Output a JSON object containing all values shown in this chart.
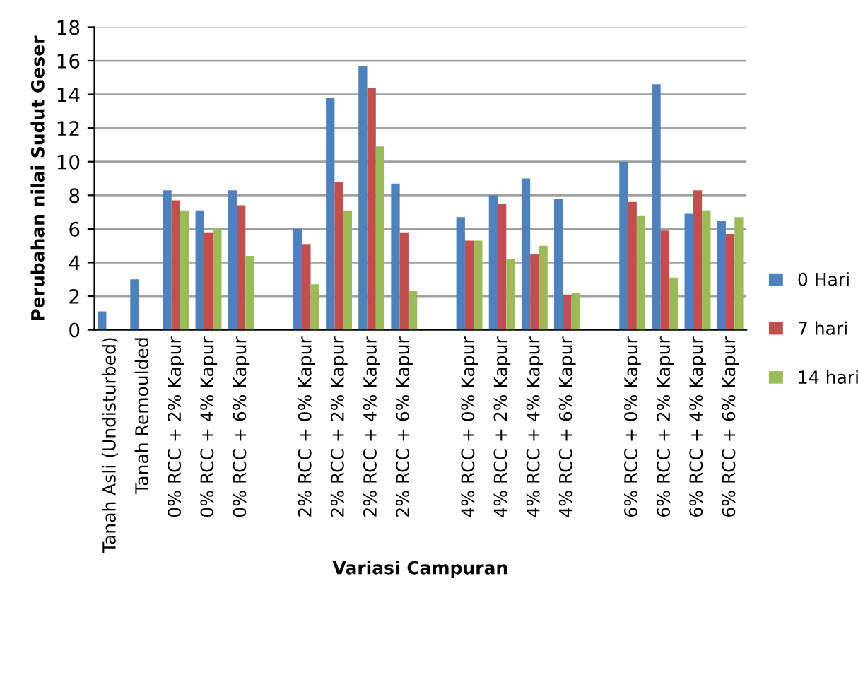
{
  "chart_data": {
    "type": "bar",
    "xlabel": "Variasi Campuran",
    "ylabel": "Perubahan nilai Sudut Geser",
    "categories": [
      "Tanah Asli (Undisturbed)",
      "Tanah Remoulded",
      "0% RCC + 2% Kapur",
      "0% RCC + 4% Kapur",
      "0% RCC + 6% Kapur",
      null,
      "2% RCC + 0% Kapur",
      "2% RCC + 2% Kapur",
      "2% RCC + 4% Kapur",
      "2% RCC + 6% Kapur",
      null,
      "4% RCC + 0% Kapur",
      "4% RCC + 2% Kapur",
      "4% RCC + 4% Kapur",
      "4% RCC + 6% Kapur",
      null,
      "6% RCC + 0% Kapur",
      "6% RCC + 2% Kapur",
      "6% RCC + 4% Kapur",
      "6% RCC + 6% Kapur"
    ],
    "series": [
      {
        "name": "0 Hari",
        "color": "#4f81bd",
        "values": [
          1.1,
          3.0,
          8.3,
          7.1,
          8.3,
          null,
          6.0,
          13.8,
          15.7,
          8.7,
          null,
          6.7,
          8.0,
          9.0,
          7.8,
          null,
          10.0,
          14.6,
          6.9,
          6.5
        ]
      },
      {
        "name": "7 hari",
        "color": "#c0504d",
        "values": [
          null,
          null,
          7.7,
          5.8,
          7.4,
          null,
          5.1,
          8.8,
          14.4,
          5.8,
          null,
          5.3,
          7.5,
          4.5,
          2.1,
          null,
          7.6,
          5.9,
          8.3,
          5.7
        ]
      },
      {
        "name": "14 hari",
        "color": "#9bbb59",
        "values": [
          null,
          null,
          7.1,
          6.0,
          4.4,
          null,
          2.7,
          7.1,
          10.9,
          2.3,
          null,
          5.3,
          4.2,
          5.0,
          2.2,
          null,
          6.8,
          3.1,
          7.1,
          6.7
        ]
      }
    ],
    "ylim": [
      0,
      18
    ],
    "yticks": [
      0,
      2,
      4,
      6,
      8,
      10,
      12,
      14,
      16,
      18
    ],
    "grid": "y",
    "legend": "right"
  }
}
